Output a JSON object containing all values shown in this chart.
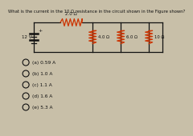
{
  "title": "What is the current in the 10 Ω resistance in the circuit shown in the Figure shown?",
  "circuit": {
    "battery_voltage": "12 V",
    "top_resistor": "2.0 Ω",
    "parallel_resistors": [
      "4.0 Ω",
      "6.0 Ω",
      "10 Ω"
    ]
  },
  "options": [
    "(a) 0.59 A",
    "(b) 1.0 A",
    "(c) 1.1 A",
    "(d) 1.6 A",
    "(e) 5.3 A"
  ],
  "bg_color": "#c8bfa8",
  "text_color": "#111111",
  "resistor_color": "#cc3300"
}
